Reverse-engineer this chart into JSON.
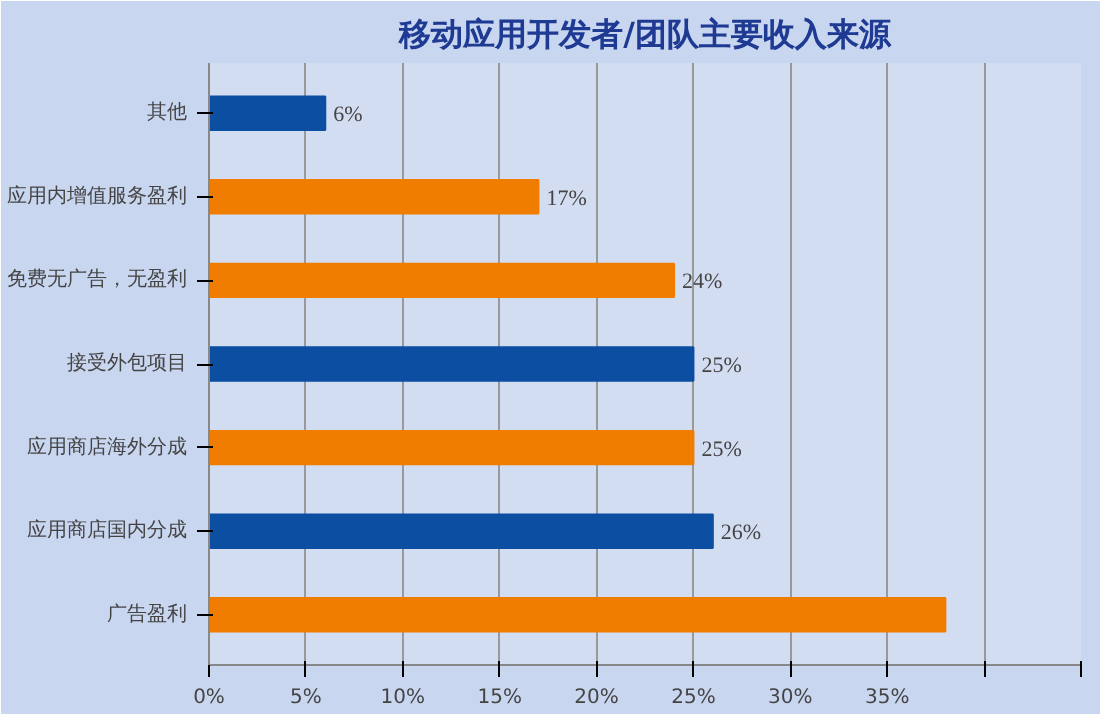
{
  "chart_data": {
    "type": "bar",
    "orientation": "horizontal",
    "title": "移动应用开发者/团队主要收入来源",
    "categories": [
      "其他",
      "应用内增值服务盈利",
      "免费无广告，无盈利",
      "接受外包项目",
      "应用商店海外分成",
      "应用商店国内分成",
      "广告盈利"
    ],
    "values": [
      6,
      17,
      24,
      25,
      25,
      26,
      38
    ],
    "colors": [
      "#0b4ea2",
      "#f07c00",
      "#f07c00",
      "#0b4ea2",
      "#f07c00",
      "#0b4ea2",
      "#f07c00"
    ],
    "value_labels": [
      "6%",
      "17%",
      "24%",
      "25%",
      "25%",
      "26%",
      null
    ],
    "xlim": [
      0,
      45
    ],
    "xticks": [
      {
        "value": 0,
        "label": "0%"
      },
      {
        "value": 5,
        "label": "5%"
      },
      {
        "value": 10,
        "label": "10%"
      },
      {
        "value": 15,
        "label": "15%"
      },
      {
        "value": 20,
        "label": "20%"
      },
      {
        "value": 25,
        "label": "25%"
      },
      {
        "value": 30,
        "label": "30%"
      },
      {
        "value": 35,
        "label": "35%"
      },
      {
        "value": 40,
        "label": null
      },
      {
        "value": 45,
        "label": null
      }
    ],
    "grid": "x"
  }
}
